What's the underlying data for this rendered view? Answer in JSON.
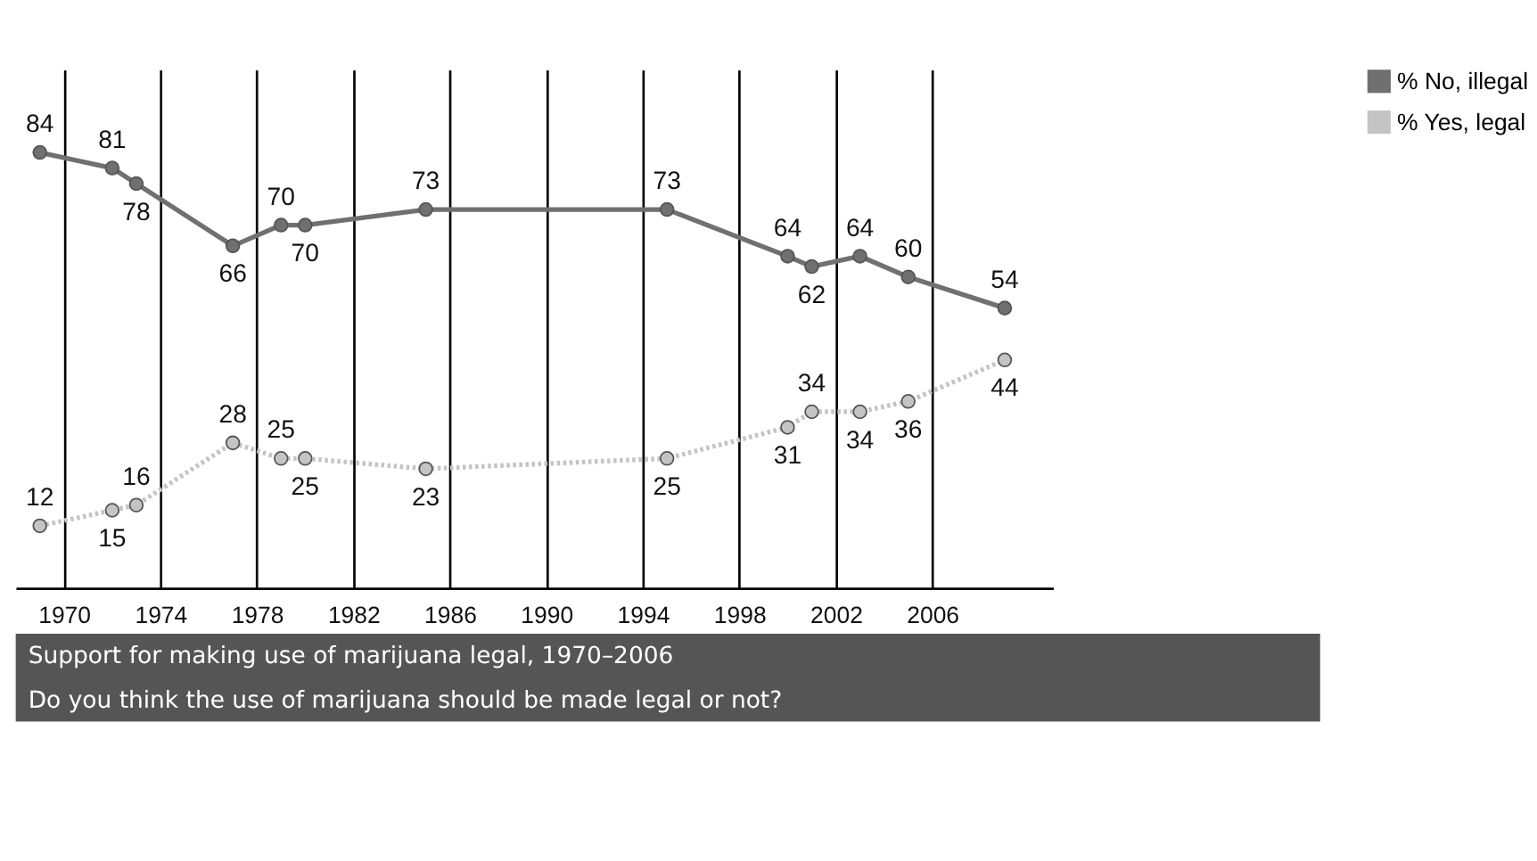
{
  "chart_data": {
    "type": "line",
    "title": "Support for making use of marijuana legal, 1970–2006",
    "subtitle": "Do you think the use of marijuana should be made legal or not?",
    "x": [
      1969,
      1972,
      1973,
      1977,
      1979,
      1980,
      1985,
      1995,
      2000,
      2001,
      2003,
      2005,
      2009
    ],
    "series": [
      {
        "name": "% No, illegal",
        "color": "#707070",
        "line_style": "solid",
        "values": [
          84,
          81,
          78,
          66,
          70,
          70,
          73,
          73,
          64,
          62,
          64,
          60,
          54
        ]
      },
      {
        "name": "% Yes, legal",
        "color": "#c4c4c4",
        "line_style": "dotted",
        "values": [
          12,
          15,
          16,
          28,
          25,
          25,
          23,
          25,
          31,
          34,
          34,
          36,
          44
        ]
      }
    ],
    "xlim": [
      1968,
      2011
    ],
    "xticks": [
      1970,
      1974,
      1978,
      1982,
      1986,
      1990,
      1994,
      1998,
      2002,
      2006
    ],
    "ylim": [
      0,
      100
    ],
    "tick_labels": "x",
    "grid": "x",
    "marker": "circle",
    "data_labels": true,
    "legend": "top right"
  }
}
